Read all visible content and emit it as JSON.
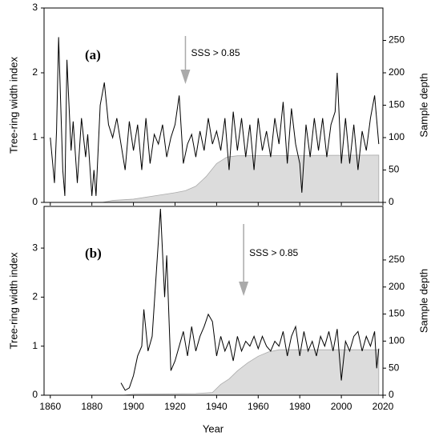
{
  "chart_data": [
    {
      "type": "line",
      "ylabel": "Tree-ring width index",
      "y2label": "Sample depth",
      "annotations": [
        {
          "text": "(a)"
        },
        {
          "text": "SSS > 0.85",
          "x": 1925
        }
      ],
      "ylim": [
        0,
        3
      ],
      "yticks": [
        0,
        1,
        2,
        3
      ],
      "y2lim": [
        0,
        300
      ],
      "y2ticks": [
        0,
        50,
        100,
        150,
        200,
        250
      ],
      "series": [
        {
          "axis": "y2",
          "type": "area",
          "color": "#dcdcdc",
          "x": [
            1885,
            1890,
            1900,
            1910,
            1920,
            1925,
            1930,
            1935,
            1940,
            1945,
            1950,
            2018
          ],
          "values": [
            0,
            3,
            5,
            10,
            15,
            18,
            25,
            40,
            60,
            70,
            72,
            73
          ]
        },
        {
          "axis": "y",
          "type": "line",
          "color": "#000000",
          "x": [
            1860,
            1862,
            1863,
            1864,
            1866,
            1867,
            1868,
            1870,
            1871,
            1873,
            1875,
            1877,
            1878,
            1880,
            1881,
            1882,
            1884,
            1886,
            1888,
            1890,
            1892,
            1894,
            1896,
            1898,
            1900,
            1902,
            1904,
            1906,
            1908,
            1910,
            1912,
            1914,
            1916,
            1918,
            1920,
            1922,
            1924,
            1926,
            1928,
            1930,
            1932,
            1934,
            1936,
            1938,
            1940,
            1942,
            1944,
            1946,
            1948,
            1950,
            1952,
            1954,
            1956,
            1958,
            1960,
            1962,
            1964,
            1966,
            1968,
            1970,
            1972,
            1974,
            1976,
            1978,
            1980,
            1981,
            1983,
            1985,
            1987,
            1989,
            1991,
            1993,
            1995,
            1997,
            1998,
            2000,
            2002,
            2004,
            2006,
            2008,
            2010,
            2012,
            2014,
            2016,
            2018
          ],
          "values": [
            1.0,
            0.3,
            1.1,
            2.55,
            0.5,
            0.1,
            2.2,
            0.8,
            1.25,
            0.3,
            1.3,
            0.7,
            1.05,
            0.1,
            0.5,
            0.1,
            1.5,
            1.85,
            1.2,
            1.0,
            1.3,
            0.9,
            0.5,
            1.25,
            0.8,
            1.2,
            0.5,
            1.3,
            0.6,
            1.05,
            0.9,
            1.2,
            0.7,
            1.0,
            1.2,
            1.65,
            0.6,
            0.9,
            1.05,
            0.7,
            1.1,
            0.8,
            1.3,
            0.9,
            1.1,
            0.8,
            1.3,
            0.5,
            1.4,
            0.8,
            1.3,
            0.7,
            1.2,
            0.5,
            1.3,
            0.8,
            1.1,
            0.7,
            1.3,
            0.9,
            1.55,
            0.6,
            1.45,
            0.9,
            0.6,
            0.15,
            1.2,
            0.7,
            1.3,
            0.8,
            1.3,
            0.7,
            1.2,
            1.4,
            2.0,
            0.6,
            1.3,
            0.6,
            1.2,
            0.5,
            1.1,
            0.8,
            1.3,
            1.65,
            0.9
          ]
        }
      ]
    },
    {
      "type": "line",
      "xlabel": "Year",
      "ylabel": "Tree-ring width index",
      "y2label": "Sample depth",
      "annotations": [
        {
          "text": "(b)"
        },
        {
          "text": "SSS > 0.85",
          "x": 1953
        }
      ],
      "xlim": [
        1857,
        2020
      ],
      "xticks": [
        1860,
        1880,
        1900,
        1920,
        1940,
        1960,
        1980,
        2000,
        2020
      ],
      "ylim": [
        0,
        3.85
      ],
      "yticks": [
        0,
        1,
        2,
        3
      ],
      "y2lim": [
        0,
        349
      ],
      "y2ticks": [
        0,
        50,
        100,
        150,
        200,
        250
      ],
      "series": [
        {
          "axis": "y2",
          "type": "area",
          "color": "#dcdcdc",
          "x": [
            1895,
            1900,
            1930,
            1938,
            1942,
            1946,
            1950,
            1955,
            1960,
            1965,
            1970,
            2018
          ],
          "values": [
            0,
            2,
            3,
            5,
            20,
            30,
            45,
            60,
            72,
            80,
            84,
            84
          ]
        },
        {
          "axis": "y",
          "type": "line",
          "color": "#000000",
          "x": [
            1894,
            1896,
            1898,
            1900,
            1902,
            1904,
            1905,
            1907,
            1909,
            1911,
            1913,
            1915,
            1916,
            1918,
            1920,
            1922,
            1924,
            1926,
            1928,
            1930,
            1932,
            1934,
            1936,
            1938,
            1940,
            1942,
            1944,
            1946,
            1948,
            1950,
            1952,
            1954,
            1956,
            1958,
            1960,
            1962,
            1964,
            1966,
            1968,
            1970,
            1972,
            1974,
            1976,
            1978,
            1980,
            1982,
            1984,
            1986,
            1988,
            1990,
            1992,
            1994,
            1996,
            1998,
            2000,
            2002,
            2004,
            2006,
            2008,
            2010,
            2012,
            2014,
            2016,
            2017,
            2018
          ],
          "values": [
            0.25,
            0.1,
            0.15,
            0.4,
            0.8,
            1.0,
            1.75,
            0.9,
            1.2,
            2.5,
            3.8,
            2.0,
            2.85,
            0.5,
            0.7,
            1.0,
            1.3,
            0.8,
            1.4,
            0.9,
            1.2,
            1.4,
            1.65,
            1.5,
            0.8,
            1.2,
            0.9,
            1.1,
            0.7,
            1.2,
            0.9,
            1.1,
            1.0,
            1.2,
            0.95,
            1.2,
            1.0,
            0.9,
            1.1,
            1.0,
            1.3,
            0.8,
            1.2,
            1.4,
            0.8,
            1.3,
            0.9,
            1.1,
            0.8,
            1.2,
            1.0,
            1.3,
            0.9,
            1.35,
            0.3,
            1.1,
            0.9,
            1.2,
            1.3,
            0.9,
            1.2,
            1.0,
            1.3,
            0.55,
            0.95
          ]
        }
      ]
    }
  ]
}
